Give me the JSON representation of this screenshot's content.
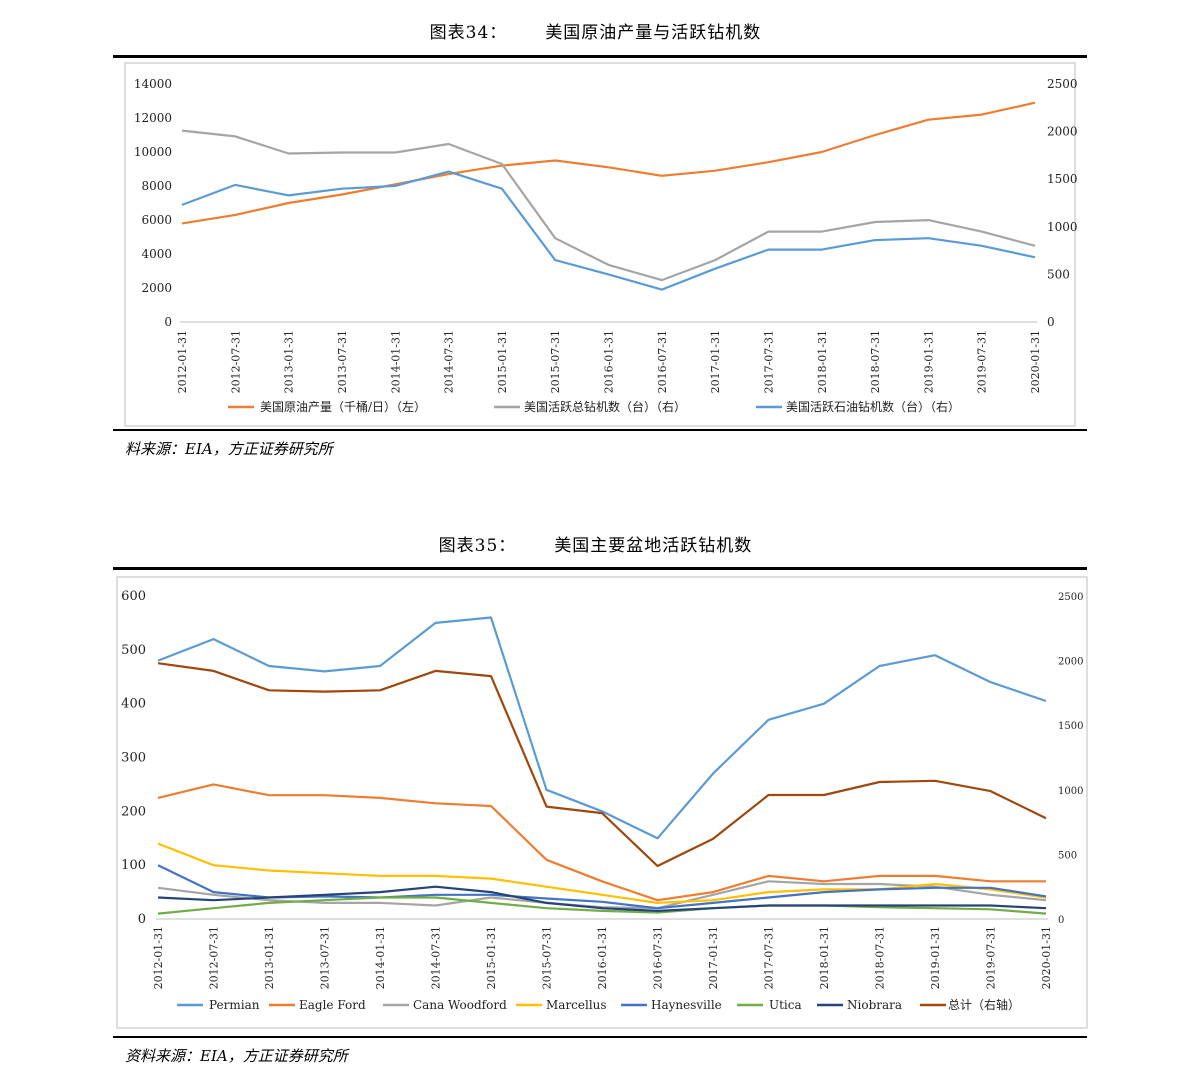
{
  "figure1": {
    "label": "图表34：",
    "title": "美国原油产量与活跃钻机数",
    "source": "料来源：EIA，方正证券研究所"
  },
  "figure2": {
    "label": "图表35：",
    "title": "美国主要盆地活跃钻机数",
    "source": "资料来源：EIA，方正证券研究所"
  },
  "dates": [
    "2012-01-31",
    "2012-07-31",
    "2013-01-31",
    "2013-07-31",
    "2014-01-31",
    "2014-07-31",
    "2015-01-31",
    "2015-07-31",
    "2016-01-31",
    "2016-07-31",
    "2017-01-31",
    "2017-07-31",
    "2018-01-31",
    "2018-07-31",
    "2019-01-31",
    "2019-07-31",
    "2020-01-31"
  ],
  "chart_data": [
    {
      "type": "line",
      "title": "美国原油产量与活跃钻机数",
      "x": [
        "2012-01-31",
        "2012-07-31",
        "2013-01-31",
        "2013-07-31",
        "2014-01-31",
        "2014-07-31",
        "2015-01-31",
        "2015-07-31",
        "2016-01-31",
        "2016-07-31",
        "2017-01-31",
        "2017-07-31",
        "2018-01-31",
        "2018-07-31",
        "2019-01-31",
        "2019-07-31",
        "2020-01-31"
      ],
      "y_left": {
        "ylim": [
          0,
          14000
        ],
        "ticks": [
          "0",
          "2000",
          "4000",
          "6000",
          "8000",
          "10000",
          "12000",
          "14000"
        ]
      },
      "y_right": {
        "ylim": [
          0,
          2500
        ],
        "ticks": [
          "0",
          "500",
          "1000",
          "1500",
          "2000",
          "2500"
        ]
      },
      "legend_position": "bottom",
      "series": [
        {
          "name": "美国原油产量（千桶/日）（左）",
          "axis": "left",
          "color": "#ed7d31",
          "values": [
            5800,
            6300,
            7000,
            7500,
            8100,
            8700,
            9200,
            9500,
            9100,
            8600,
            8900,
            9400,
            10000,
            11000,
            11900,
            12200,
            12900
          ]
        },
        {
          "name": "美国活跃总钻机数（台）（右）",
          "axis": "right",
          "color": "#a5a5a5",
          "values": [
            2010,
            1950,
            1770,
            1780,
            1780,
            1870,
            1660,
            880,
            600,
            440,
            650,
            950,
            950,
            1050,
            1070,
            950,
            800
          ]
        },
        {
          "name": "美国活跃石油钻机数（台）（右）",
          "axis": "right",
          "color": "#5b9bd5",
          "values": [
            1230,
            1440,
            1330,
            1400,
            1430,
            1580,
            1400,
            650,
            500,
            340,
            560,
            760,
            760,
            860,
            880,
            800,
            680
          ]
        }
      ]
    },
    {
      "type": "line",
      "title": "美国主要盆地活跃钻机数",
      "x": [
        "2012-01-31",
        "2012-07-31",
        "2013-01-31",
        "2013-07-31",
        "2014-01-31",
        "2014-07-31",
        "2015-01-31",
        "2015-07-31",
        "2016-01-31",
        "2016-07-31",
        "2017-01-31",
        "2017-07-31",
        "2018-01-31",
        "2018-07-31",
        "2019-01-31",
        "2019-07-31",
        "2020-01-31"
      ],
      "y_left": {
        "ylim": [
          0,
          600
        ],
        "ticks": [
          "0",
          "100",
          "200",
          "300",
          "400",
          "500",
          "600"
        ]
      },
      "y_right": {
        "ylim": [
          0,
          2500
        ],
        "ticks": [
          "0",
          "500",
          "1000",
          "1500",
          "2000",
          "2500"
        ]
      },
      "legend_position": "bottom",
      "series": [
        {
          "name": "Permian",
          "axis": "left",
          "color": "#5b9bd5",
          "values": [
            480,
            520,
            470,
            460,
            470,
            550,
            560,
            240,
            200,
            150,
            270,
            370,
            400,
            470,
            490,
            440,
            405
          ]
        },
        {
          "name": "Eagle Ford",
          "axis": "left",
          "color": "#ed7d31",
          "values": [
            225,
            250,
            230,
            230,
            225,
            215,
            210,
            110,
            70,
            35,
            50,
            80,
            70,
            80,
            80,
            70,
            70
          ]
        },
        {
          "name": "Cana Woodford",
          "axis": "left",
          "color": "#a5a5a5",
          "values": [
            58,
            45,
            35,
            30,
            30,
            25,
            40,
            30,
            22,
            20,
            45,
            70,
            65,
            65,
            60,
            45,
            35
          ]
        },
        {
          "name": "Marcellus",
          "axis": "left",
          "color": "#ffc000",
          "values": [
            140,
            100,
            90,
            85,
            80,
            80,
            75,
            60,
            45,
            30,
            35,
            50,
            55,
            55,
            65,
            55,
            40
          ]
        },
        {
          "name": "Haynesville",
          "axis": "left",
          "color": "#4472c4",
          "values": [
            100,
            50,
            40,
            42,
            40,
            45,
            45,
            38,
            32,
            20,
            30,
            40,
            50,
            55,
            58,
            58,
            42
          ]
        },
        {
          "name": "Utica",
          "axis": "left",
          "color": "#70ad47",
          "values": [
            10,
            20,
            30,
            35,
            40,
            40,
            30,
            20,
            15,
            12,
            20,
            25,
            25,
            22,
            20,
            18,
            10
          ]
        },
        {
          "name": "Niobrara",
          "axis": "left",
          "color": "#264478",
          "values": [
            40,
            35,
            40,
            45,
            50,
            60,
            50,
            30,
            20,
            15,
            20,
            25,
            25,
            25,
            25,
            25,
            20
          ]
        },
        {
          "name": "总计（右轴）",
          "axis": "right",
          "color": "#9e480e",
          "values": [
            1980,
            1920,
            1770,
            1760,
            1770,
            1920,
            1880,
            870,
            820,
            410,
            620,
            960,
            960,
            1060,
            1070,
            990,
            780
          ]
        }
      ]
    }
  ]
}
